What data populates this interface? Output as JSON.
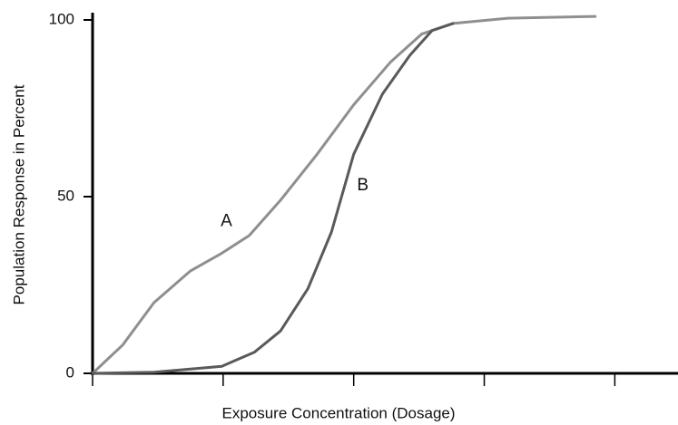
{
  "chart_data": {
    "type": "line",
    "x_label": "Exposure Concentration (Dosage)",
    "y_label": "Population Response in Percent",
    "xlim": [
      0,
      4.47
    ],
    "xticks": [
      0,
      1,
      2,
      3,
      4
    ],
    "ylim": [
      0,
      100
    ],
    "yticks": [
      0,
      50,
      100
    ],
    "grid": false,
    "series": [
      {
        "name": "A",
        "color": "#8f8f8f",
        "x": [
          0,
          0.23,
          0.47,
          0.75,
          0.99,
          1.2,
          1.44,
          1.72,
          2.0,
          2.28,
          2.52,
          2.76,
          3.18,
          3.85
        ],
        "values": [
          0,
          8,
          20,
          29,
          34,
          39,
          49,
          62,
          76,
          88,
          96,
          99,
          100.5,
          101
        ]
      },
      {
        "name": "B",
        "color": "#5a5a5a",
        "x": [
          0,
          0.47,
          0.99,
          1.24,
          1.44,
          1.65,
          1.83,
          2.0,
          2.22,
          2.43,
          2.6,
          2.76
        ],
        "values": [
          0,
          0.3,
          2,
          6,
          12,
          24,
          40,
          62,
          79,
          90,
          97,
          99
        ]
      }
    ]
  }
}
